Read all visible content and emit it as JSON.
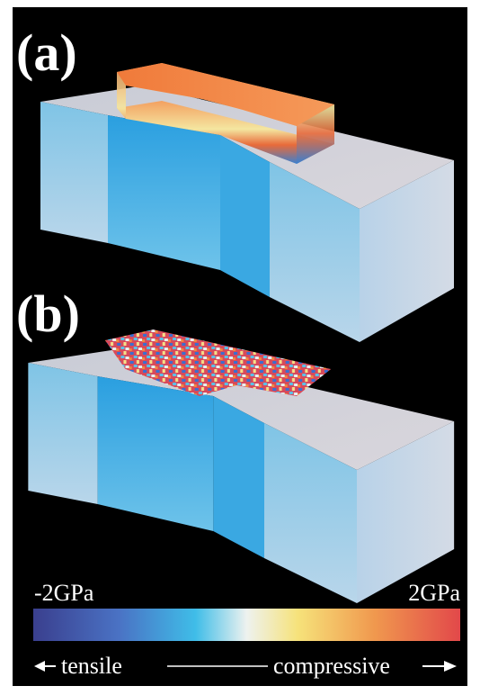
{
  "panels": [
    {
      "label": "(a)"
    },
    {
      "label": "(b)"
    }
  ],
  "colorbar": {
    "min_label": "-2GPa",
    "max_label": "2GPa",
    "left_label": "tensile",
    "right_label": "compressive"
  }
}
